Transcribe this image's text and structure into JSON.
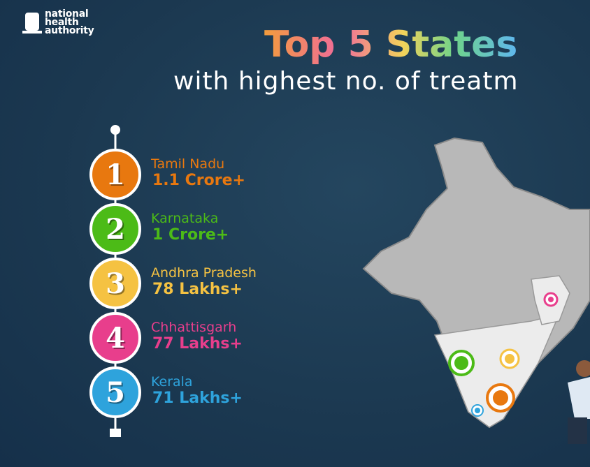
{
  "logo": {
    "lines": [
      "national",
      "health",
      "authority"
    ]
  },
  "header": {
    "title": "Top 5 States",
    "subtitle": "with highest no. of treatm"
  },
  "items": [
    {
      "rank": "1",
      "state": "Tamil Nadu",
      "value": "1.1 Crore+"
    },
    {
      "rank": "2",
      "state": "Karnataka",
      "value": "1 Crore+"
    },
    {
      "rank": "3",
      "state": "Andhra Pradesh",
      "value": "78 Lakhs+"
    },
    {
      "rank": "4",
      "state": "Chhattisgarh",
      "value": "77 Lakhs+"
    },
    {
      "rank": "5",
      "state": "Kerala",
      "value": "71 Lakhs+"
    }
  ]
}
